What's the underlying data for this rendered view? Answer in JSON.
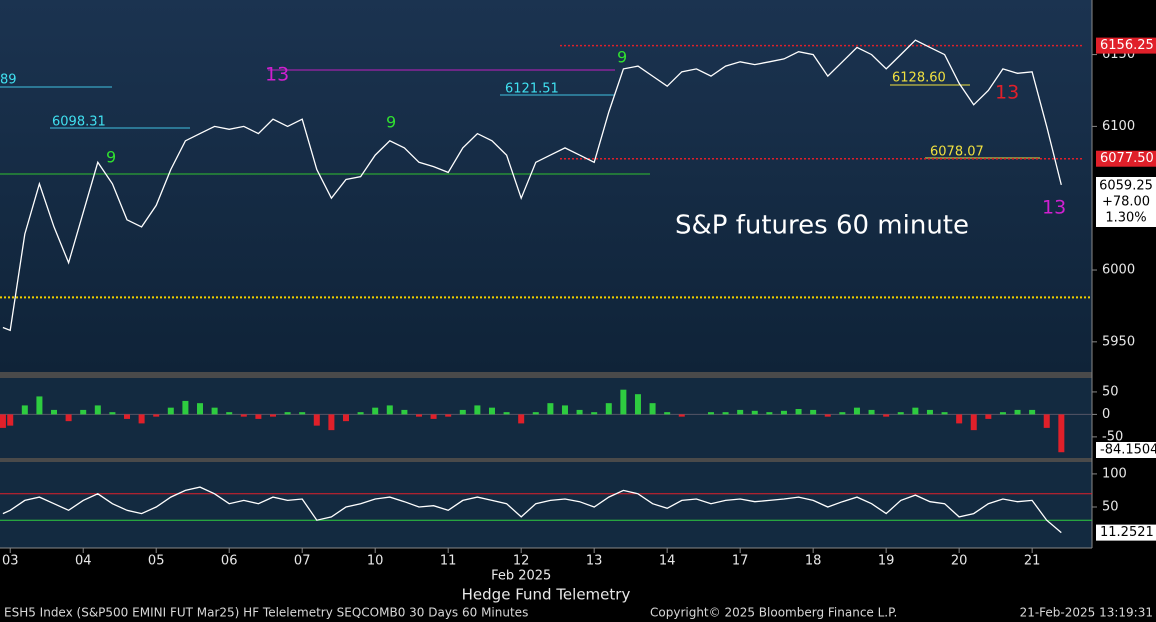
{
  "chart_data": [
    {
      "type": "line",
      "title": "Hedge Fund Telemetry",
      "footer": "ESH5 Index (S&P500 EMINI FUT  Mar25) HF Telelemetry SEQCOMB0 30 Days 60 Minutes",
      "copyright": "Copyright© 2025 Bloomberg Finance L.P.",
      "timestamp": "21-Feb-2025 13:19:31",
      "x_sublabel": "Feb 2025",
      "x": [
        -0.1,
        0,
        0.2,
        0.4,
        0.6,
        0.8,
        1,
        1.2,
        1.4,
        1.6,
        1.8,
        2,
        2.2,
        2.4,
        2.6,
        2.8,
        3,
        3.2,
        3.4,
        3.6,
        3.8,
        4,
        4.2,
        4.4,
        4.6,
        4.8,
        5,
        5.2,
        5.4,
        5.6,
        5.8,
        6,
        6.2,
        6.4,
        6.6,
        6.8,
        7,
        7.2,
        7.4,
        7.6,
        7.8,
        8,
        8.2,
        8.4,
        8.6,
        8.8,
        9,
        9.2,
        9.4,
        9.6,
        9.8,
        10,
        10.2,
        10.4,
        10.6,
        10.8,
        11,
        11.2,
        11.4,
        11.6,
        11.8,
        12,
        12.2,
        12.4,
        12.6,
        12.8,
        13,
        13.2,
        13.4,
        13.6,
        13.8,
        14,
        14.2,
        14.4
      ],
      "xlim": [
        -0.14,
        14.82
      ],
      "xticks": [
        {
          "value": 0,
          "label": "03"
        },
        {
          "value": 1,
          "label": "04"
        },
        {
          "value": 2,
          "label": "05"
        },
        {
          "value": 3,
          "label": "06"
        },
        {
          "value": 4,
          "label": "07"
        },
        {
          "value": 5,
          "label": "10"
        },
        {
          "value": 6,
          "label": "11"
        },
        {
          "value": 7,
          "label": "12"
        },
        {
          "value": 8,
          "label": "13"
        },
        {
          "value": 9,
          "label": "14"
        },
        {
          "value": 10,
          "label": "17"
        },
        {
          "value": 11,
          "label": "18"
        },
        {
          "value": 12,
          "label": "19"
        },
        {
          "value": 13,
          "label": "20"
        },
        {
          "value": 14,
          "label": "21"
        }
      ],
      "ylim": [
        5929,
        6188
      ],
      "yticks": [
        5950,
        6000,
        6100,
        6150
      ],
      "series": [
        {
          "color": "#ffffff",
          "values": [
            5960,
            5958,
            6025,
            6060,
            6030,
            6005,
            6040,
            6075,
            6060,
            6035,
            6030,
            6045,
            6070,
            6090,
            6095,
            6100,
            6098,
            6100,
            6095,
            6105,
            6100,
            6105,
            6070,
            6050,
            6063,
            6065,
            6080,
            6090,
            6085,
            6075,
            6072,
            6068,
            6085,
            6095,
            6090,
            6080,
            6050,
            6075,
            6080,
            6085,
            6080,
            6075,
            6110,
            6140,
            6142,
            6135,
            6128,
            6138,
            6140,
            6135,
            6142,
            6145,
            6143,
            6145,
            6147,
            6152,
            6150,
            6135,
            6145,
            6155,
            6150,
            6140,
            6150,
            6160,
            6155,
            6150,
            6130,
            6115,
            6125,
            6140,
            6137,
            6138,
            6100,
            6059.25
          ]
        }
      ],
      "quote": {
        "change": "+78.00",
        "change_pct": "1.30%"
      },
      "levels": [
        {
          "value": 6156.25,
          "label": "6156.25",
          "color": "#e0202a"
        },
        {
          "value": 6077.5,
          "label": "6077.50",
          "color": "#e0202a"
        },
        {
          "value": 5981,
          "color": "#f0d000"
        }
      ],
      "annotations": [
        {
          "text": "S&P futures 60 minute",
          "color": "#ffffff"
        },
        {
          "text": "6098.31",
          "color": "#40e0f0"
        },
        {
          "text": "6121.51",
          "color": "#40e0f0"
        },
        {
          "text": "6128.60",
          "color": "#f0e040"
        },
        {
          "text": "6078.07",
          "color": "#f0e040"
        },
        {
          "text": "13",
          "color": "#d020d0"
        },
        {
          "text": "13",
          "color": "#e0202a"
        },
        {
          "text": "13",
          "color": "#d020d0"
        },
        {
          "text": "9",
          "color": "#30e030"
        },
        {
          "text": "9",
          "color": "#30e030"
        },
        {
          "text": "9",
          "color": "#30e030"
        },
        {
          "text": "89",
          "color": "#40e0f0"
        }
      ]
    },
    {
      "type": "bar",
      "ylim": [
        -97,
        81
      ],
      "yticks": [
        -50,
        0,
        50
      ],
      "pos_color": "#2ecc40",
      "neg_color": "#e0202a",
      "values": [
        -30,
        -25,
        20,
        40,
        10,
        -15,
        10,
        20,
        5,
        -10,
        -20,
        -5,
        15,
        30,
        25,
        15,
        5,
        -5,
        -10,
        -5,
        5,
        5,
        -25,
        -35,
        -15,
        5,
        15,
        20,
        10,
        -5,
        -10,
        -5,
        10,
        20,
        15,
        5,
        -20,
        5,
        25,
        20,
        10,
        5,
        25,
        55,
        45,
        25,
        5,
        -5,
        0,
        5,
        5,
        10,
        8,
        5,
        8,
        12,
        10,
        -5,
        5,
        15,
        10,
        -5,
        5,
        15,
        10,
        5,
        -20,
        -35,
        -10,
        5,
        10,
        10,
        -30,
        -84.1504
      ]
    },
    {
      "type": "line",
      "ylim": [
        -12,
        118
      ],
      "yticks": [
        50,
        100
      ],
      "color": "#ffffff",
      "levels": [
        {
          "value": 70,
          "color": "#e0202a"
        },
        {
          "value": 30,
          "color": "#2ecc40"
        }
      ],
      "values": [
        40,
        45,
        60,
        65,
        55,
        45,
        60,
        70,
        55,
        45,
        40,
        50,
        65,
        75,
        80,
        70,
        55,
        60,
        55,
        65,
        60,
        62,
        30,
        35,
        50,
        55,
        62,
        65,
        58,
        50,
        52,
        45,
        60,
        65,
        60,
        55,
        35,
        55,
        60,
        62,
        58,
        50,
        65,
        75,
        70,
        55,
        48,
        60,
        62,
        55,
        60,
        62,
        58,
        60,
        62,
        65,
        60,
        50,
        58,
        65,
        55,
        40,
        60,
        68,
        58,
        55,
        35,
        40,
        55,
        62,
        58,
        60,
        30,
        11.2521
      ]
    }
  ]
}
